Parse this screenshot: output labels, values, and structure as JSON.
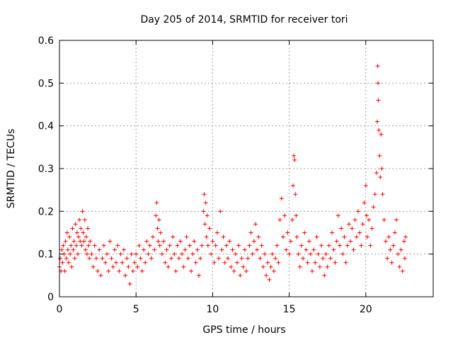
{
  "chart_data": {
    "type": "scatter",
    "title": "Day 205 of 2014, SRMTID for receiver tori",
    "xlabel": "GPS time / hours",
    "ylabel": "SRMTID / TECUs",
    "xlim": [
      0,
      24.4
    ],
    "ylim": [
      0,
      0.6
    ],
    "xticks": [
      0,
      5,
      10,
      15,
      20
    ],
    "xtick_labels": [
      "0",
      "5",
      "10",
      "15",
      "20"
    ],
    "yticks": [
      0,
      0.1,
      0.2,
      0.3,
      0.4,
      0.5,
      0.6
    ],
    "ytick_labels": [
      "0",
      "0.1",
      "0.2",
      "0.3",
      "0.4",
      "0.5",
      "0.6"
    ],
    "grid": true,
    "marker": "+",
    "series": [
      {
        "name": "SRMTID",
        "color": "#ff0000",
        "points": [
          [
            0.0,
            0.07
          ],
          [
            0.05,
            0.09
          ],
          [
            0.1,
            0.06
          ],
          [
            0.15,
            0.11
          ],
          [
            0.2,
            0.08
          ],
          [
            0.25,
            0.12
          ],
          [
            0.3,
            0.1
          ],
          [
            0.35,
            0.06
          ],
          [
            0.4,
            0.13
          ],
          [
            0.45,
            0.09
          ],
          [
            0.5,
            0.15
          ],
          [
            0.55,
            0.11
          ],
          [
            0.6,
            0.08
          ],
          [
            0.65,
            0.14
          ],
          [
            0.7,
            0.1
          ],
          [
            0.75,
            0.12
          ],
          [
            0.8,
            0.07
          ],
          [
            0.85,
            0.16
          ],
          [
            0.9,
            0.11
          ],
          [
            0.95,
            0.13
          ],
          [
            1.0,
            0.09
          ],
          [
            1.05,
            0.17
          ],
          [
            1.1,
            0.12
          ],
          [
            1.15,
            0.15
          ],
          [
            1.2,
            0.1
          ],
          [
            1.25,
            0.14
          ],
          [
            1.3,
            0.18
          ],
          [
            1.35,
            0.13
          ],
          [
            1.4,
            0.16
          ],
          [
            1.45,
            0.12
          ],
          [
            1.5,
            0.2
          ],
          [
            1.55,
            0.15
          ],
          [
            1.6,
            0.13
          ],
          [
            1.65,
            0.18
          ],
          [
            1.7,
            0.11
          ],
          [
            1.75,
            0.14
          ],
          [
            1.8,
            0.1
          ],
          [
            1.85,
            0.16
          ],
          [
            1.9,
            0.12
          ],
          [
            1.95,
            0.09
          ],
          [
            2.0,
            0.13
          ],
          [
            2.1,
            0.1
          ],
          [
            2.2,
            0.07
          ],
          [
            2.3,
            0.12
          ],
          [
            2.4,
            0.09
          ],
          [
            2.5,
            0.06
          ],
          [
            2.6,
            0.11
          ],
          [
            2.7,
            0.05
          ],
          [
            2.8,
            0.09
          ],
          [
            2.9,
            0.12
          ],
          [
            3.0,
            0.08
          ],
          [
            3.1,
            0.1
          ],
          [
            3.2,
            0.06
          ],
          [
            3.3,
            0.13
          ],
          [
            3.4,
            0.09
          ],
          [
            3.5,
            0.07
          ],
          [
            3.6,
            0.11
          ],
          [
            3.7,
            0.08
          ],
          [
            3.8,
            0.12
          ],
          [
            3.9,
            0.06
          ],
          [
            4.0,
            0.1
          ],
          [
            4.1,
            0.08
          ],
          [
            4.2,
            0.11
          ],
          [
            4.3,
            0.05
          ],
          [
            4.4,
            0.09
          ],
          [
            4.5,
            0.07
          ],
          [
            4.6,
            0.03
          ],
          [
            4.7,
            0.1
          ],
          [
            4.8,
            0.06
          ],
          [
            4.9,
            0.08
          ],
          [
            5.0,
            0.1
          ],
          [
            5.1,
            0.07
          ],
          [
            5.2,
            0.12
          ],
          [
            5.3,
            0.09
          ],
          [
            5.4,
            0.06
          ],
          [
            5.5,
            0.11
          ],
          [
            5.6,
            0.08
          ],
          [
            5.7,
            0.13
          ],
          [
            5.8,
            0.1
          ],
          [
            5.9,
            0.12
          ],
          [
            6.0,
            0.09
          ],
          [
            6.1,
            0.14
          ],
          [
            6.2,
            0.11
          ],
          [
            6.3,
            0.19
          ],
          [
            6.35,
            0.22
          ],
          [
            6.4,
            0.16
          ],
          [
            6.45,
            0.13
          ],
          [
            6.5,
            0.18
          ],
          [
            6.55,
            0.12
          ],
          [
            6.6,
            0.15
          ],
          [
            6.7,
            0.1
          ],
          [
            6.8,
            0.13
          ],
          [
            6.9,
            0.08
          ],
          [
            7.0,
            0.11
          ],
          [
            7.1,
            0.07
          ],
          [
            7.2,
            0.12
          ],
          [
            7.3,
            0.09
          ],
          [
            7.4,
            0.14
          ],
          [
            7.5,
            0.1
          ],
          [
            7.6,
            0.06
          ],
          [
            7.7,
            0.12
          ],
          [
            7.8,
            0.09
          ],
          [
            7.9,
            0.13
          ],
          [
            8.0,
            0.1
          ],
          [
            8.1,
            0.07
          ],
          [
            8.2,
            0.11
          ],
          [
            8.3,
            0.14
          ],
          [
            8.4,
            0.09
          ],
          [
            8.5,
            0.12
          ],
          [
            8.6,
            0.06
          ],
          [
            8.7,
            0.1
          ],
          [
            8.8,
            0.13
          ],
          [
            8.9,
            0.08
          ],
          [
            9.0,
            0.11
          ],
          [
            9.1,
            0.05
          ],
          [
            9.2,
            0.09
          ],
          [
            9.3,
            0.12
          ],
          [
            9.4,
            0.2
          ],
          [
            9.45,
            0.24
          ],
          [
            9.5,
            0.17
          ],
          [
            9.55,
            0.22
          ],
          [
            9.6,
            0.14
          ],
          [
            9.65,
            0.19
          ],
          [
            9.7,
            0.12
          ],
          [
            9.8,
            0.16
          ],
          [
            9.9,
            0.1
          ],
          [
            10.0,
            0.13
          ],
          [
            10.1,
            0.08
          ],
          [
            10.2,
            0.12
          ],
          [
            10.3,
            0.15
          ],
          [
            10.4,
            0.09
          ],
          [
            10.5,
            0.2
          ],
          [
            10.6,
            0.11
          ],
          [
            10.7,
            0.14
          ],
          [
            10.8,
            0.08
          ],
          [
            10.9,
            0.12
          ],
          [
            11.0,
            0.09
          ],
          [
            11.1,
            0.13
          ],
          [
            11.2,
            0.07
          ],
          [
            11.3,
            0.11
          ],
          [
            11.4,
            0.06
          ],
          [
            11.5,
            0.1
          ],
          [
            11.6,
            0.08
          ],
          [
            11.7,
            0.12
          ],
          [
            11.8,
            0.05
          ],
          [
            11.9,
            0.09
          ],
          [
            12.0,
            0.07
          ],
          [
            12.1,
            0.11
          ],
          [
            12.2,
            0.06
          ],
          [
            12.3,
            0.09
          ],
          [
            12.4,
            0.12
          ],
          [
            12.5,
            0.15
          ],
          [
            12.6,
            0.1
          ],
          [
            12.7,
            0.13
          ],
          [
            12.8,
            0.17
          ],
          [
            12.9,
            0.11
          ],
          [
            13.0,
            0.14
          ],
          [
            13.1,
            0.09
          ],
          [
            13.2,
            0.12
          ],
          [
            13.3,
            0.07
          ],
          [
            13.4,
            0.1
          ],
          [
            13.5,
            0.05
          ],
          [
            13.6,
            0.08
          ],
          [
            13.7,
            0.04
          ],
          [
            13.8,
            0.07
          ],
          [
            13.9,
            0.1
          ],
          [
            14.0,
            0.06
          ],
          [
            14.1,
            0.09
          ],
          [
            14.2,
            0.12
          ],
          [
            14.3,
            0.08
          ],
          [
            14.4,
            0.18
          ],
          [
            14.5,
            0.23
          ],
          [
            14.6,
            0.14
          ],
          [
            14.7,
            0.19
          ],
          [
            14.8,
            0.11
          ],
          [
            14.9,
            0.15
          ],
          [
            15.0,
            0.1
          ],
          [
            15.1,
            0.13
          ],
          [
            15.2,
            0.18
          ],
          [
            15.25,
            0.26
          ],
          [
            15.3,
            0.33
          ],
          [
            15.35,
            0.32
          ],
          [
            15.4,
            0.24
          ],
          [
            15.45,
            0.19
          ],
          [
            15.5,
            0.14
          ],
          [
            15.6,
            0.1
          ],
          [
            15.7,
            0.07
          ],
          [
            15.8,
            0.12
          ],
          [
            15.9,
            0.09
          ],
          [
            16.0,
            0.15
          ],
          [
            16.1,
            0.11
          ],
          [
            16.2,
            0.08
          ],
          [
            16.3,
            0.13
          ],
          [
            16.4,
            0.1
          ],
          [
            16.5,
            0.06
          ],
          [
            16.6,
            0.11
          ],
          [
            16.7,
            0.08
          ],
          [
            16.8,
            0.14
          ],
          [
            16.9,
            0.1
          ],
          [
            17.0,
            0.07
          ],
          [
            17.1,
            0.12
          ],
          [
            17.2,
            0.09
          ],
          [
            17.3,
            0.05
          ],
          [
            17.4,
            0.1
          ],
          [
            17.5,
            0.07
          ],
          [
            17.6,
            0.12
          ],
          [
            17.7,
            0.09
          ],
          [
            17.8,
            0.15
          ],
          [
            17.9,
            0.11
          ],
          [
            18.0,
            0.08
          ],
          [
            18.1,
            0.13
          ],
          [
            18.2,
            0.19
          ],
          [
            18.3,
            0.12
          ],
          [
            18.4,
            0.16
          ],
          [
            18.5,
            0.1
          ],
          [
            18.6,
            0.14
          ],
          [
            18.7,
            0.08
          ],
          [
            18.8,
            0.12
          ],
          [
            18.9,
            0.17
          ],
          [
            19.0,
            0.13
          ],
          [
            19.1,
            0.16
          ],
          [
            19.2,
            0.11
          ],
          [
            19.3,
            0.18
          ],
          [
            19.4,
            0.14
          ],
          [
            19.5,
            0.2
          ],
          [
            19.6,
            0.15
          ],
          [
            19.7,
            0.12
          ],
          [
            19.8,
            0.17
          ],
          [
            19.9,
            0.22
          ],
          [
            20.0,
            0.26
          ],
          [
            20.05,
            0.19
          ],
          [
            20.1,
            0.14
          ],
          [
            20.2,
            0.18
          ],
          [
            20.3,
            0.12
          ],
          [
            20.4,
            0.16
          ],
          [
            20.5,
            0.21
          ],
          [
            20.6,
            0.24
          ],
          [
            20.7,
            0.29
          ],
          [
            20.75,
            0.41
          ],
          [
            20.78,
            0.54
          ],
          [
            20.8,
            0.5
          ],
          [
            20.82,
            0.46
          ],
          [
            20.85,
            0.39
          ],
          [
            20.9,
            0.33
          ],
          [
            20.95,
            0.28
          ],
          [
            21.0,
            0.38
          ],
          [
            21.05,
            0.3
          ],
          [
            21.1,
            0.24
          ],
          [
            21.2,
            0.18
          ],
          [
            21.3,
            0.13
          ],
          [
            21.4,
            0.09
          ],
          [
            21.5,
            0.14
          ],
          [
            21.6,
            0.11
          ],
          [
            21.7,
            0.08
          ],
          [
            21.8,
            0.12
          ],
          [
            21.9,
            0.15
          ],
          [
            22.0,
            0.18
          ],
          [
            22.1,
            0.1
          ],
          [
            22.2,
            0.07
          ],
          [
            22.3,
            0.11
          ],
          [
            22.4,
            0.06
          ],
          [
            22.5,
            0.13
          ],
          [
            22.55,
            0.09
          ],
          [
            22.6,
            0.14
          ]
        ]
      }
    ]
  }
}
